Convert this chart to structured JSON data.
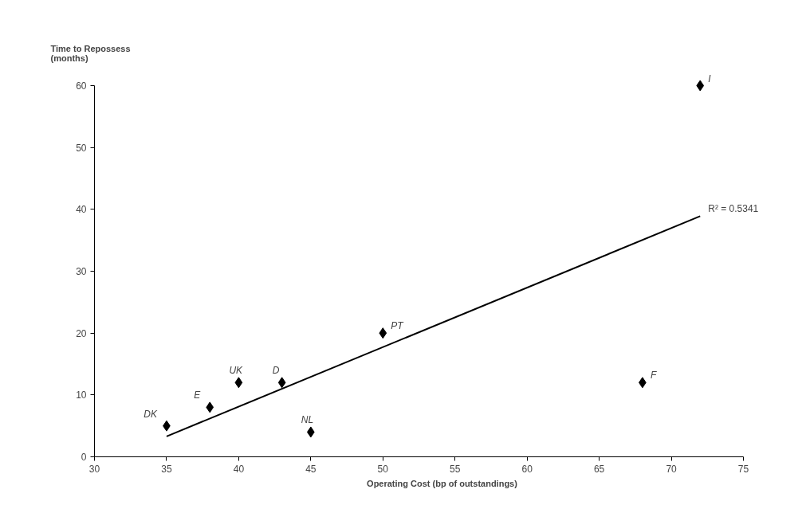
{
  "chart_data": {
    "type": "scatter",
    "xlabel": "Operating Cost (bp of outstandings)",
    "ylabel": "Time to Repossess\n(months)",
    "x": [
      35,
      38,
      40,
      43,
      45,
      50,
      68,
      72
    ],
    "values": [
      5,
      8,
      12,
      12,
      4,
      20,
      12,
      60
    ],
    "color": "#000000",
    "marker": "diamond",
    "grid": false,
    "xlim": [
      30,
      75
    ],
    "xticks": [
      30,
      35,
      40,
      45,
      50,
      55,
      60,
      65,
      70,
      75
    ],
    "ylim": [
      0,
      60
    ],
    "yticks": [
      0,
      10,
      20,
      30,
      40,
      50,
      60
    ],
    "series": [
      {
        "type": "line",
        "x": [
          35,
          72
        ],
        "values": [
          3.3,
          38.9
        ],
        "color": "#000000",
        "line_style": "solid",
        "marker": "none"
      }
    ],
    "annotations": [
      {
        "text": "DK",
        "x": 35,
        "y": 5
      },
      {
        "text": "E",
        "x": 38,
        "y": 8
      },
      {
        "text": "UK",
        "x": 40,
        "y": 12
      },
      {
        "text": "D",
        "x": 43,
        "y": 12
      },
      {
        "text": "NL",
        "x": 45,
        "y": 4
      },
      {
        "text": "PT",
        "x": 50,
        "y": 20
      },
      {
        "text": "F",
        "x": 68,
        "y": 12
      },
      {
        "text": "I",
        "x": 72,
        "y": 60
      },
      {
        "text": "R² = 0.5341",
        "x": 72,
        "y": 38.9
      }
    ]
  }
}
